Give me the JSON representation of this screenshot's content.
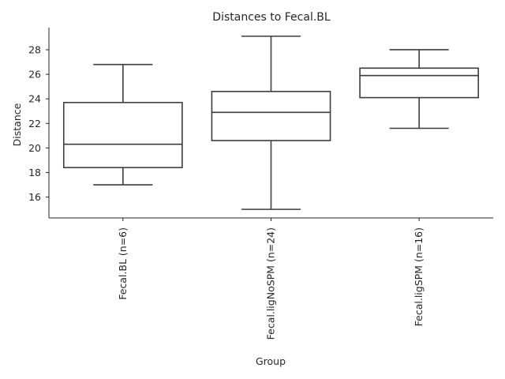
{
  "chart_data": {
    "type": "box",
    "title": "Distances to Fecal.BL",
    "xlabel": "Group",
    "ylabel": "Distance",
    "categories": [
      "Fecal.BL (n=6)",
      "Fecal.ligNoSPM (n=24)",
      "Fecal.ligSPM (n=16)"
    ],
    "boxes": [
      {
        "whisker_low": 17.0,
        "q1": 18.4,
        "median": 20.3,
        "q3": 23.7,
        "whisker_high": 26.8
      },
      {
        "whisker_low": 15.0,
        "q1": 20.6,
        "median": 22.9,
        "q3": 24.6,
        "whisker_high": 29.1
      },
      {
        "whisker_low": 21.6,
        "q1": 24.1,
        "median": 25.9,
        "q3": 26.5,
        "whisker_high": 28.0
      }
    ],
    "yticks": [
      16,
      18,
      20,
      22,
      24,
      26,
      28
    ],
    "ylim": [
      14.3,
      29.8
    ],
    "grid": false,
    "line_color": "#3d3d3d",
    "box_fill": "#ffffff"
  }
}
